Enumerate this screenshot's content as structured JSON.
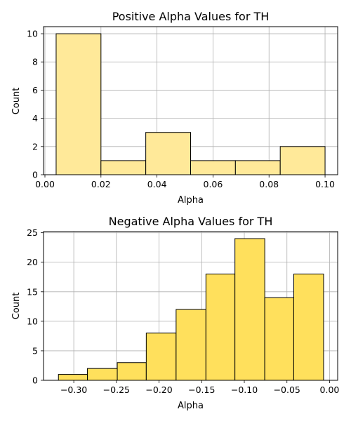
{
  "chart_data": [
    {
      "type": "bar",
      "title": "Positive Alpha Values for TH",
      "xlabel": "Alpha",
      "ylabel": "Count",
      "xlim": [
        -0.0005,
        0.1045
      ],
      "ylim": [
        0,
        10.5
      ],
      "xticks": [
        0.0,
        0.02,
        0.04,
        0.06,
        0.08,
        0.1
      ],
      "xtick_labels": [
        "0.00",
        "0.02",
        "0.04",
        "0.06",
        "0.08",
        "0.10"
      ],
      "yticks": [
        0,
        2,
        4,
        6,
        8,
        10
      ],
      "ytick_labels": [
        "0",
        "2",
        "4",
        "6",
        "8",
        "10"
      ],
      "grid": true,
      "color": "#ffe999",
      "bins": [
        {
          "start": 0.004,
          "end": 0.02,
          "count": 10
        },
        {
          "start": 0.02,
          "end": 0.036,
          "count": 1
        },
        {
          "start": 0.036,
          "end": 0.052,
          "count": 3
        },
        {
          "start": 0.052,
          "end": 0.068,
          "count": 1
        },
        {
          "start": 0.068,
          "end": 0.084,
          "count": 1
        },
        {
          "start": 0.084,
          "end": 0.1,
          "count": 2
        }
      ]
    },
    {
      "type": "bar",
      "title": "Negative Alpha Values for TH",
      "xlabel": "Alpha",
      "ylabel": "Count",
      "xlim": [
        -0.3355,
        0.0095
      ],
      "ylim": [
        0,
        25.2
      ],
      "xticks": [
        -0.3,
        -0.25,
        -0.2,
        -0.15,
        -0.1,
        -0.05,
        0.0
      ],
      "xtick_labels": [
        "−0.30",
        "−0.25",
        "−0.20",
        "−0.15",
        "−0.10",
        "−0.05",
        "0.00"
      ],
      "yticks": [
        0,
        5,
        10,
        15,
        20,
        25
      ],
      "ytick_labels": [
        "0",
        "5",
        "10",
        "15",
        "20",
        "25"
      ],
      "grid": true,
      "color": "#ffe05c",
      "bins": [
        {
          "start": -0.318,
          "end": -0.284,
          "count": 1
        },
        {
          "start": -0.284,
          "end": -0.249,
          "count": 2
        },
        {
          "start": -0.249,
          "end": -0.215,
          "count": 3
        },
        {
          "start": -0.215,
          "end": -0.18,
          "count": 8
        },
        {
          "start": -0.18,
          "end": -0.145,
          "count": 12
        },
        {
          "start": -0.145,
          "end": -0.111,
          "count": 18
        },
        {
          "start": -0.111,
          "end": -0.076,
          "count": 24
        },
        {
          "start": -0.076,
          "end": -0.042,
          "count": 14
        },
        {
          "start": -0.042,
          "end": -0.007,
          "count": 18
        }
      ]
    }
  ]
}
